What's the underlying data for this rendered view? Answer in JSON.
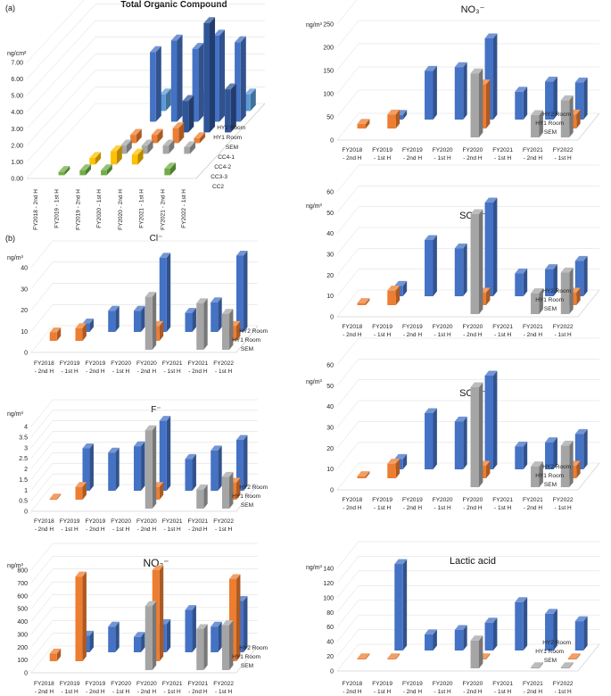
{
  "panel_labels": {
    "a": "(a)",
    "b": "(b)"
  },
  "chart_data": [
    {
      "id": "toc",
      "type": "bar3d",
      "title": "Total Organic Compound",
      "unit": "ng/cm²",
      "ylim": [
        0,
        7
      ],
      "yticks": [
        "0.00",
        "1.00",
        "2.00",
        "3.00",
        "4.00",
        "5.00",
        "6.00",
        "7.00"
      ],
      "categories": [
        "FY2018 - 2nd H",
        "FY2019 - 1st H",
        "FY2019 - 2nd H",
        "FY2020 - 1st H",
        "FY2020 - 2nd H",
        "FY2021 - 1st H",
        "FY2021 - 2nd H",
        "FY2022 - 1st H"
      ],
      "series": [
        {
          "name": "HY2 Room",
          "color": "#5b9bd5",
          "values": [
            null,
            null,
            null,
            1.0,
            null,
            1.1,
            null,
            1.0
          ]
        },
        {
          "name": "HY1 Room",
          "color": "#4472c4",
          "values": [
            null,
            null,
            null,
            4.2,
            4.9,
            4.4,
            5.2,
            4.8
          ]
        },
        {
          "name": "SEM",
          "color": "#2f5597",
          "values": [
            null,
            null,
            null,
            null,
            null,
            1.9,
            6.6,
            2.6
          ]
        },
        {
          "name": "CC4-1",
          "color": "#ed7d31",
          "values": [
            null,
            null,
            null,
            0.5,
            0.5,
            0.9,
            0.3,
            null
          ]
        },
        {
          "name": "CC4-2",
          "color": "#a5a5a5",
          "values": [
            null,
            null,
            null,
            0.5,
            0.5,
            0.5,
            0.4,
            null
          ]
        },
        {
          "name": "CC3-3",
          "color": "#ffc000",
          "values": [
            null,
            null,
            0.4,
            0.8,
            0.6,
            null,
            null,
            null
          ]
        },
        {
          "name": "CC2",
          "color": "#70ad47",
          "values": [
            null,
            0.2,
            0.3,
            0.3,
            null,
            null,
            0.4,
            null
          ]
        }
      ]
    },
    {
      "id": "no3",
      "type": "bar3d",
      "title": "NO₃⁻",
      "unit": "ng/m³",
      "ylim": [
        0,
        250
      ],
      "yticks": [
        "0",
        "50",
        "100",
        "150",
        "200",
        "250"
      ],
      "categories": [
        "FY2018 - 2nd H",
        "FY2019 - 1st H",
        "FY2019 - 2nd H",
        "FY2020 - 1st H",
        "FY2020 - 2nd H",
        "FY2021 - 1st H",
        "FY2021 - 2nd H",
        "FY2022 - 1st H"
      ],
      "series": [
        {
          "name": "HY2 Room",
          "color": "#4472c4",
          "values": [
            null,
            10,
            105,
            113,
            175,
            60,
            82,
            80
          ]
        },
        {
          "name": "HY1 Room",
          "color": "#ed7d31",
          "values": [
            10,
            30,
            null,
            null,
            95,
            null,
            null,
            30
          ]
        },
        {
          "name": "SEM",
          "color": "#a5a5a5",
          "values": [
            null,
            null,
            null,
            null,
            138,
            null,
            48,
            80
          ]
        }
      ]
    },
    {
      "id": "so4a",
      "type": "bar3d",
      "title": "SO₄²⁻",
      "unit": "ng/m³",
      "ylim": [
        0,
        60
      ],
      "yticks": [
        "0",
        "10",
        "20",
        "30",
        "40",
        "50",
        "60"
      ],
      "categories": [
        "FY2018 - 2nd H",
        "FY2019 - 1st H",
        "FY2019 - 2nd H",
        "FY2020 - 1st H",
        "FY2020 - 2nd H",
        "FY2021 - 1st H",
        "FY2021 - 2nd H",
        "FY2022 - 1st H"
      ],
      "series": [
        {
          "name": "HY2 Room",
          "color": "#4472c4",
          "values": [
            null,
            5,
            27,
            23,
            45,
            11,
            13,
            17
          ]
        },
        {
          "name": "HY1 Room",
          "color": "#ed7d31",
          "values": [
            1,
            7,
            null,
            null,
            6,
            null,
            null,
            6
          ]
        },
        {
          "name": "SEM",
          "color": "#a5a5a5",
          "values": [
            null,
            null,
            null,
            null,
            48,
            null,
            10,
            20
          ]
        }
      ]
    },
    {
      "id": "cl",
      "type": "bar3d",
      "title": "Cl⁻",
      "unit": "ng/m³",
      "ylim": [
        0,
        40
      ],
      "yticks": [
        "0",
        "10",
        "20",
        "30",
        "40"
      ],
      "categories": [
        "FY2018 - 2nd H",
        "FY2019 - 1st H",
        "FY2019 - 2nd H",
        "FY2020 - 1st H",
        "FY2020 - 2nd H",
        "FY2021 - 1st H",
        "FY2021 - 2nd H",
        "FY2022 - 1st H"
      ],
      "series": [
        {
          "name": "HY2 Room",
          "color": "#4472c4",
          "values": [
            null,
            4,
            10,
            10,
            35,
            9,
            14,
            36
          ]
        },
        {
          "name": "HY1 Room",
          "color": "#ed7d31",
          "values": [
            4,
            6,
            null,
            null,
            7,
            null,
            null,
            7
          ]
        },
        {
          "name": "SEM",
          "color": "#a5a5a5",
          "values": [
            null,
            null,
            null,
            null,
            25,
            null,
            22,
            17
          ]
        }
      ]
    },
    {
      "id": "so4b",
      "type": "bar3d",
      "title": "SO₄²⁻",
      "unit": "ng/m³",
      "ylim": [
        0,
        60
      ],
      "yticks": [
        "0",
        "10",
        "20",
        "30",
        "40",
        "50",
        "60"
      ],
      "categories": [
        "FY2018 - 2nd H",
        "FY2019 - 1st H",
        "FY2019 - 2nd H",
        "FY2020 - 1st H",
        "FY2020 - 2nd H",
        "FY2021 - 1st H",
        "FY2021 - 2nd H",
        "FY2022 - 1st H"
      ],
      "series": [
        {
          "name": "HY2 Room",
          "color": "#4472c4",
          "values": [
            null,
            5,
            27,
            23,
            45,
            11,
            13,
            17
          ]
        },
        {
          "name": "HY1 Room",
          "color": "#ed7d31",
          "values": [
            1,
            7,
            null,
            null,
            6,
            null,
            null,
            6
          ]
        },
        {
          "name": "SEM",
          "color": "#a5a5a5",
          "values": [
            null,
            null,
            null,
            null,
            48,
            null,
            10,
            20
          ]
        }
      ]
    },
    {
      "id": "f",
      "type": "bar3d",
      "title": "F⁻",
      "unit": "ng/m³",
      "ylim": [
        0,
        4
      ],
      "yticks": [
        "0",
        "0.5",
        "1",
        "1.5",
        "2",
        "2.5",
        "3",
        "3.5",
        "4"
      ],
      "categories": [
        "FY2018 - 2nd H",
        "FY2019 - 1st H",
        "FY2019 - 2nd H",
        "FY2020 - 1st H",
        "FY2020 - 2nd H",
        "FY2021 - 1st H",
        "FY2021 - 2nd H",
        "FY2022 - 1st H"
      ],
      "series": [
        {
          "name": "HY2 Room",
          "color": "#4472c4",
          "values": [
            null,
            2.0,
            1.8,
            2.1,
            3.3,
            1.5,
            1.9,
            2.4
          ]
        },
        {
          "name": "HY1 Room",
          "color": "#ed7d31",
          "values": [
            0.05,
            0.6,
            null,
            null,
            0.6,
            null,
            null,
            0.8
          ]
        },
        {
          "name": "SEM",
          "color": "#a5a5a5",
          "values": [
            null,
            null,
            null,
            null,
            3.7,
            null,
            0.9,
            1.5
          ]
        }
      ]
    },
    {
      "id": "no2",
      "type": "bar3d",
      "title": "NO₂⁻",
      "unit": "ng/m³",
      "ylim": [
        0,
        800
      ],
      "yticks": [
        "0",
        "100",
        "200",
        "300",
        "400",
        "500",
        "600",
        "700",
        "800"
      ],
      "categories": [
        "FY2018 - 2nd H",
        "FY2019 - 1st H",
        "FY2019 - 2nd H",
        "FY2020 - 1st H",
        "FY2020 - 2nd H",
        "FY2021 - 1st H",
        "FY2021 - 2nd H",
        "FY2022 - 1st H"
      ],
      "series": [
        {
          "name": "HY2 Room",
          "color": "#4472c4",
          "values": [
            null,
            130,
            200,
            120,
            220,
            330,
            200,
            400
          ]
        },
        {
          "name": "HY1 Room",
          "color": "#ed7d31",
          "values": [
            60,
            660,
            null,
            null,
            710,
            null,
            null,
            640
          ]
        },
        {
          "name": "SEM",
          "color": "#a5a5a5",
          "values": [
            null,
            null,
            null,
            null,
            500,
            null,
            320,
            350
          ]
        }
      ]
    },
    {
      "id": "lactic",
      "type": "bar3d",
      "title": "Lactic acid",
      "unit": "ng/m³",
      "ylim": [
        0,
        140
      ],
      "yticks": [
        "0",
        "20",
        "40",
        "60",
        "80",
        "100",
        "120",
        "140"
      ],
      "categories": [
        "FY2018 - 2nd H",
        "FY2019 - 1st H",
        "FY2019 - 2nd H",
        "FY2020 - 1st H",
        "FY2020 - 2nd H",
        "FY2021 - 1st H",
        "FY2021 - 2nd H",
        "FY2022 - 1st H"
      ],
      "series": [
        {
          "name": "HY2 Room",
          "color": "#4472c4",
          "values": [
            null,
            118,
            22,
            28,
            38,
            66,
            50,
            40
          ]
        },
        {
          "name": "HY1 Room",
          "color": "#ed7d31",
          "values": [
            0.5,
            0.5,
            null,
            null,
            0.5,
            null,
            null,
            0.5
          ]
        },
        {
          "name": "SEM",
          "color": "#a5a5a5",
          "values": [
            null,
            null,
            null,
            null,
            38,
            null,
            1,
            1
          ]
        }
      ]
    }
  ]
}
